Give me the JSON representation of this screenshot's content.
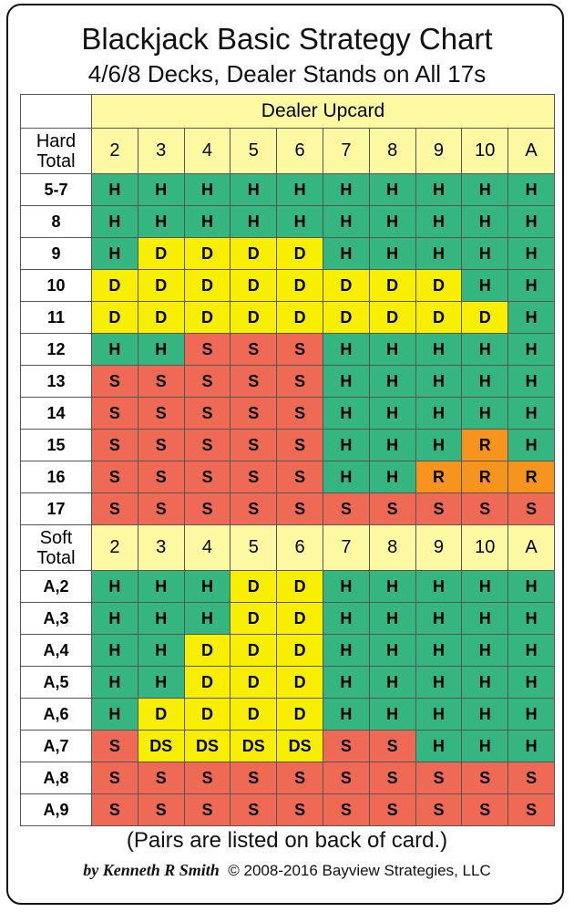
{
  "header": {
    "title": "Blackjack Basic Strategy Chart",
    "subtitle": "4/6/8 Decks, Dealer Stands on All 17s"
  },
  "table": {
    "dealer_header": "Dealer Upcard",
    "sections": [
      {
        "label": "Hard Total",
        "columns": [
          "2",
          "3",
          "4",
          "5",
          "6",
          "7",
          "8",
          "9",
          "10",
          "A"
        ],
        "rows": [
          {
            "label": "5-7",
            "cells": [
              "H",
              "H",
              "H",
              "H",
              "H",
              "H",
              "H",
              "H",
              "H",
              "H"
            ]
          },
          {
            "label": "8",
            "cells": [
              "H",
              "H",
              "H",
              "H",
              "H",
              "H",
              "H",
              "H",
              "H",
              "H"
            ]
          },
          {
            "label": "9",
            "cells": [
              "H",
              "D",
              "D",
              "D",
              "D",
              "H",
              "H",
              "H",
              "H",
              "H"
            ]
          },
          {
            "label": "10",
            "cells": [
              "D",
              "D",
              "D",
              "D",
              "D",
              "D",
              "D",
              "D",
              "H",
              "H"
            ]
          },
          {
            "label": "11",
            "cells": [
              "D",
              "D",
              "D",
              "D",
              "D",
              "D",
              "D",
              "D",
              "D",
              "H"
            ]
          },
          {
            "label": "12",
            "cells": [
              "H",
              "H",
              "S",
              "S",
              "S",
              "H",
              "H",
              "H",
              "H",
              "H"
            ]
          },
          {
            "label": "13",
            "cells": [
              "S",
              "S",
              "S",
              "S",
              "S",
              "H",
              "H",
              "H",
              "H",
              "H"
            ]
          },
          {
            "label": "14",
            "cells": [
              "S",
              "S",
              "S",
              "S",
              "S",
              "H",
              "H",
              "H",
              "H",
              "H"
            ]
          },
          {
            "label": "15",
            "cells": [
              "S",
              "S",
              "S",
              "S",
              "S",
              "H",
              "H",
              "H",
              "R",
              "H"
            ]
          },
          {
            "label": "16",
            "cells": [
              "S",
              "S",
              "S",
              "S",
              "S",
              "H",
              "H",
              "R",
              "R",
              "R"
            ]
          },
          {
            "label": "17",
            "cells": [
              "S",
              "S",
              "S",
              "S",
              "S",
              "S",
              "S",
              "S",
              "S",
              "S"
            ]
          }
        ]
      },
      {
        "label": "Soft Total",
        "columns": [
          "2",
          "3",
          "4",
          "5",
          "6",
          "7",
          "8",
          "9",
          "10",
          "A"
        ],
        "rows": [
          {
            "label": "A,2",
            "cells": [
              "H",
              "H",
              "H",
              "D",
              "D",
              "H",
              "H",
              "H",
              "H",
              "H"
            ]
          },
          {
            "label": "A,3",
            "cells": [
              "H",
              "H",
              "H",
              "D",
              "D",
              "H",
              "H",
              "H",
              "H",
              "H"
            ]
          },
          {
            "label": "A,4",
            "cells": [
              "H",
              "H",
              "D",
              "D",
              "D",
              "H",
              "H",
              "H",
              "H",
              "H"
            ]
          },
          {
            "label": "A,5",
            "cells": [
              "H",
              "H",
              "D",
              "D",
              "D",
              "H",
              "H",
              "H",
              "H",
              "H"
            ]
          },
          {
            "label": "A,6",
            "cells": [
              "H",
              "D",
              "D",
              "D",
              "D",
              "H",
              "H",
              "H",
              "H",
              "H"
            ]
          },
          {
            "label": "A,7",
            "cells": [
              "S",
              "DS",
              "DS",
              "DS",
              "DS",
              "S",
              "S",
              "H",
              "H",
              "H"
            ]
          },
          {
            "label": "A,8",
            "cells": [
              "S",
              "S",
              "S",
              "S",
              "S",
              "S",
              "S",
              "S",
              "S",
              "S"
            ]
          },
          {
            "label": "A,9",
            "cells": [
              "S",
              "S",
              "S",
              "S",
              "S",
              "S",
              "S",
              "S",
              "S",
              "S"
            ]
          }
        ]
      }
    ]
  },
  "colors": {
    "H": "#35b57f",
    "D": "#f7ee00",
    "DS": "#f7ee00",
    "S": "#ef6a55",
    "R": "#f7941d"
  },
  "footer": {
    "note": "(Pairs are listed on back of card.)",
    "author": "by Kenneth R Smith",
    "copyright": "© 2008-2016 Bayview Strategies, LLC"
  }
}
